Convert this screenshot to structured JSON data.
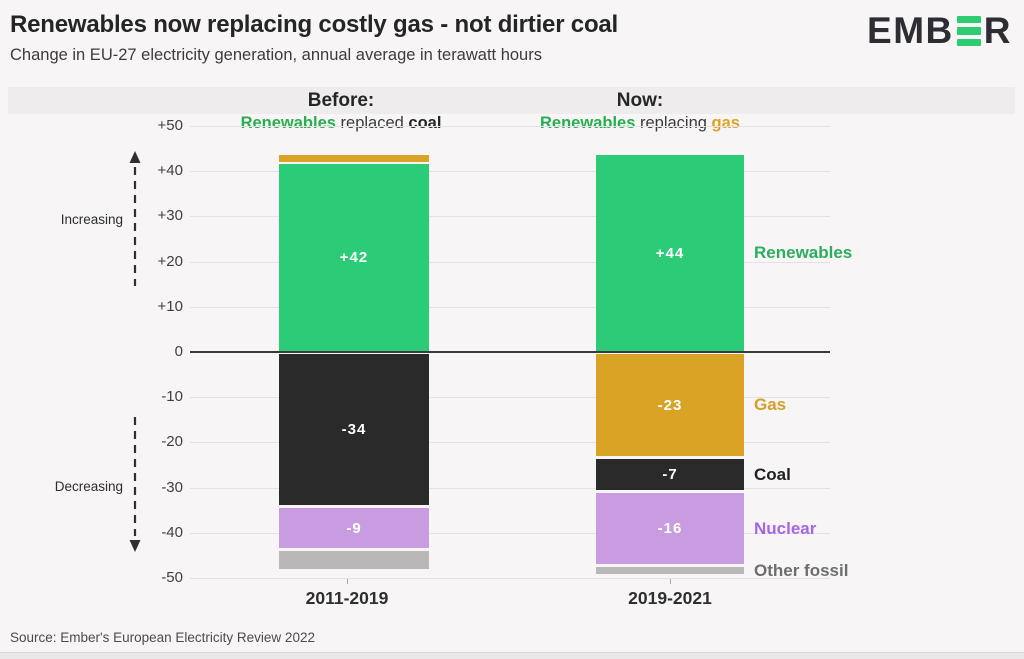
{
  "header": {
    "title": "Renewables now replacing costly gas - not dirtier coal",
    "subtitle": "Change in EU-27 electricity generation, annual average in terawatt hours",
    "logo_text_prefix": "EMB",
    "logo_text_suffix": "R",
    "logo_accent_color": "#2ecc71"
  },
  "columns": [
    {
      "title": "Before:",
      "subtitle_parts": [
        {
          "text": "Renewables",
          "color": "#27ae51"
        },
        {
          "text": " replaced ",
          "color": "#3a3a3a"
        },
        {
          "text": "coal",
          "color": "#262626"
        }
      ]
    },
    {
      "title": "Now:",
      "subtitle_parts": [
        {
          "text": "Renewables",
          "color": "#27ae51"
        },
        {
          "text": " replacing ",
          "color": "#3a3a3a"
        },
        {
          "text": "gas",
          "color": "#d9a426"
        }
      ]
    }
  ],
  "axis": {
    "increasing_label": "Increasing",
    "decreasing_label": "Decreasing",
    "yticks": [
      {
        "value": 50,
        "label": "+50"
      },
      {
        "value": 40,
        "label": "+40"
      },
      {
        "value": 30,
        "label": "+30"
      },
      {
        "value": 20,
        "label": "+20"
      },
      {
        "value": 10,
        "label": "+10"
      },
      {
        "value": 0,
        "label": "0"
      },
      {
        "value": -10,
        "label": "-10"
      },
      {
        "value": -20,
        "label": "-20"
      },
      {
        "value": -30,
        "label": "-30"
      },
      {
        "value": -40,
        "label": "-40"
      },
      {
        "value": -50,
        "label": "-50"
      }
    ]
  },
  "chart_data": {
    "type": "bar",
    "stacked": true,
    "title": "Renewables now replacing costly gas - not dirtier coal",
    "subtitle": "Change in EU-27 electricity generation, annual average in terawatt hours",
    "unit": "terawatt hours",
    "ylim": [
      -50,
      50
    ],
    "grid": true,
    "categories": [
      "2011-2019",
      "2019-2021"
    ],
    "series": [
      {
        "name": "Renewables",
        "values": [
          42,
          44
        ]
      },
      {
        "name": "Gas",
        "values": [
          1.5,
          -23
        ]
      },
      {
        "name": "Coal",
        "values": [
          -34,
          -7
        ]
      },
      {
        "name": "Nuclear",
        "values": [
          -9,
          -16
        ]
      },
      {
        "name": "Other fossil",
        "values": [
          -4,
          -1.5
        ]
      }
    ],
    "legend_position": "right"
  },
  "bars": [
    {
      "category": "2011-2019",
      "segments": [
        {
          "fuel": "gas",
          "value": 1.5,
          "label": null
        },
        {
          "fuel": "renewables",
          "value": 42,
          "label": "+42"
        },
        {
          "fuel": "coal",
          "value": -34,
          "label": "-34"
        },
        {
          "fuel": "nuclear",
          "value": -9,
          "label": "-9"
        },
        {
          "fuel": "other-fossil",
          "value": -4,
          "label": null
        }
      ]
    },
    {
      "category": "2019-2021",
      "segments": [
        {
          "fuel": "renewables",
          "value": 44,
          "label": "+44"
        },
        {
          "fuel": "gas",
          "value": -23,
          "label": "-23"
        },
        {
          "fuel": "coal",
          "value": -7,
          "label": "-7"
        },
        {
          "fuel": "nuclear",
          "value": -16,
          "label": "-16"
        },
        {
          "fuel": "other-fossil",
          "value": -1.5,
          "label": null
        }
      ]
    }
  ],
  "fuel_colors": {
    "renewables": "#2bcb77",
    "gas": "#d9a426",
    "coal": "#2b2a2a",
    "nuclear": "#c99ce2",
    "other-fossil": "#b9b7b7"
  },
  "legend": [
    {
      "fuel": "renewables",
      "label": "Renewables",
      "color": "#2aae5f"
    },
    {
      "fuel": "gas",
      "label": "Gas",
      "color": "#d4a02a"
    },
    {
      "fuel": "coal",
      "label": "Coal",
      "color": "#222222"
    },
    {
      "fuel": "nuclear",
      "label": "Nuclear",
      "color": "#a765e3"
    },
    {
      "fuel": "other-fossil",
      "label": "Other fossil",
      "color": "#6e6e6e"
    }
  ],
  "source": "Source: Ember's European Electricity Review 2022"
}
